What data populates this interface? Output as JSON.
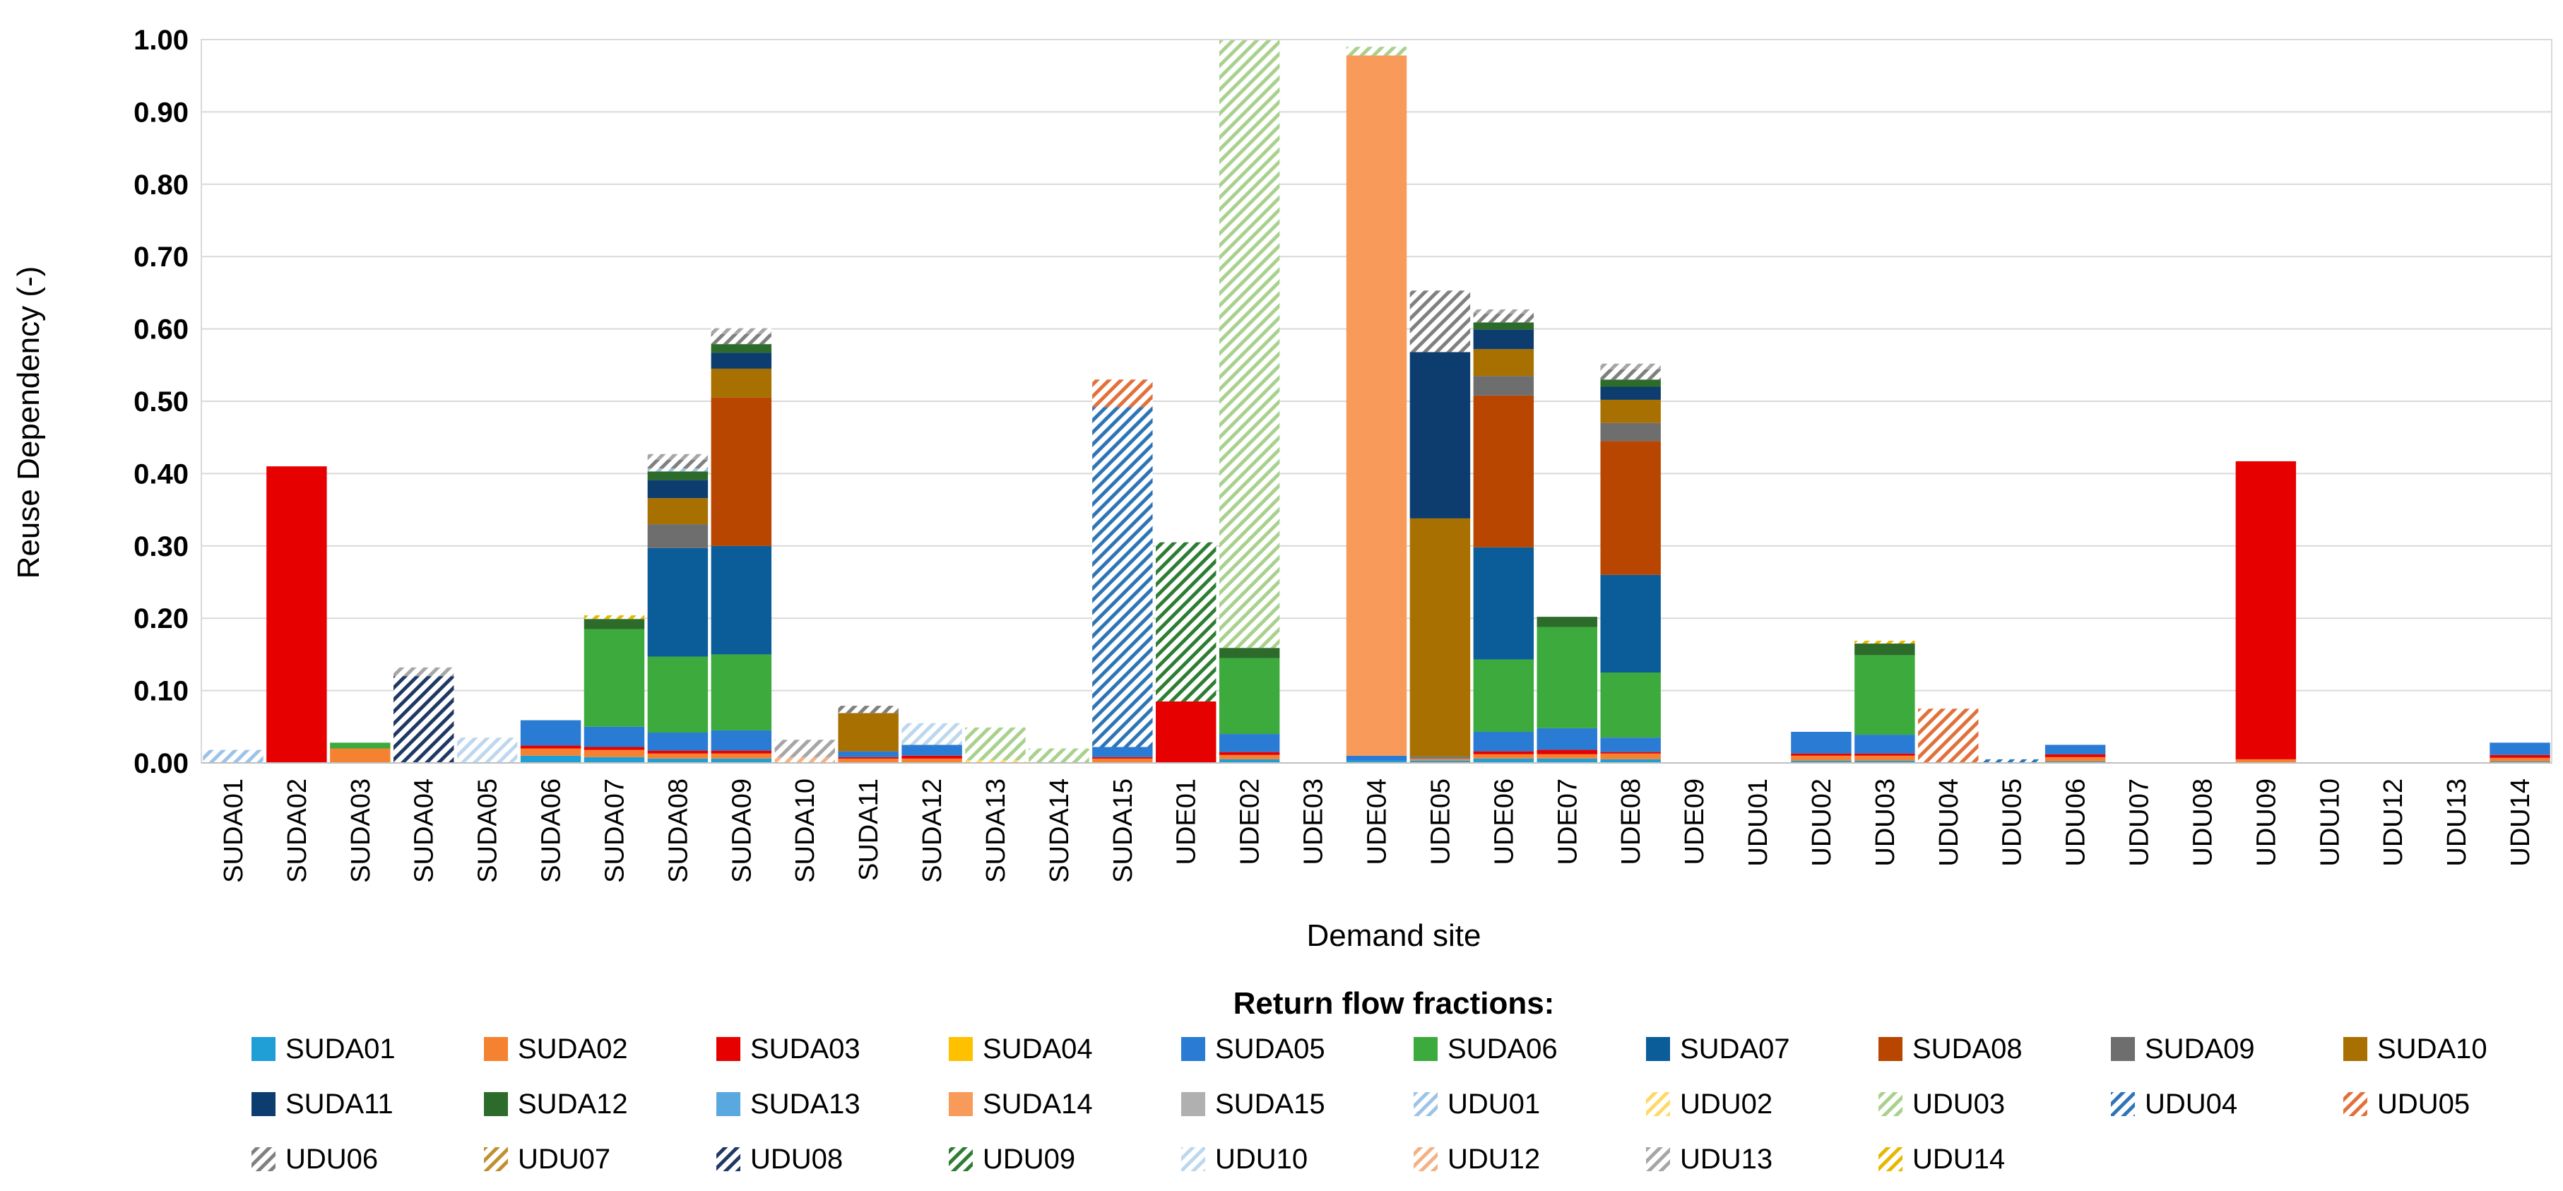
{
  "chart_data": {
    "type": "bar",
    "stacked": true,
    "title": "",
    "xlabel": "Demand site",
    "ylabel": "Reuse Dependency (-)",
    "ylim": [
      0,
      1.0
    ],
    "yticks": [
      "0.00",
      "0.10",
      "0.20",
      "0.30",
      "0.40",
      "0.50",
      "0.60",
      "0.70",
      "0.80",
      "0.90",
      "1.00"
    ],
    "grid": true,
    "legend_title": "Return flow fractions:",
    "legend_position": "bottom",
    "categories": [
      "SUDA01",
      "SUDA02",
      "SUDA03",
      "SUDA04",
      "SUDA05",
      "SUDA06",
      "SUDA07",
      "SUDA08",
      "SUDA09",
      "SUDA10",
      "SUDA11",
      "SUDA12",
      "SUDA13",
      "SUDA14",
      "SUDA15",
      "UDE01",
      "UDE02",
      "UDE03",
      "UDE04",
      "UDE05",
      "UDE06",
      "UDE07",
      "UDE08",
      "UDE09",
      "UDU01",
      "UDU02",
      "UDU03",
      "UDU04",
      "UDU05",
      "UDU06",
      "UDU07",
      "UDU08",
      "UDU09",
      "UDU10",
      "UDU12",
      "UDU13",
      "UDU14"
    ],
    "series": [
      {
        "name": "SUDA01",
        "color": "#1f9fd6",
        "pattern": false,
        "values": [
          0,
          0,
          0,
          0,
          0,
          0.01,
          0.008,
          0.006,
          0.006,
          0,
          0,
          0,
          0,
          0,
          0,
          0,
          0.005,
          0,
          0.003,
          0.003,
          0.006,
          0.006,
          0.005,
          0,
          0,
          0.003,
          0.003,
          0,
          0,
          0.002,
          0,
          0,
          0,
          0,
          0,
          0,
          0.002
        ]
      },
      {
        "name": "SUDA02",
        "color": "#f58231",
        "pattern": false,
        "values": [
          0,
          0,
          0.02,
          0,
          0,
          0.01,
          0.01,
          0.007,
          0.007,
          0,
          0.006,
          0.006,
          0,
          0,
          0.006,
          0,
          0.006,
          0,
          0,
          0.003,
          0.006,
          0.006,
          0.008,
          0,
          0,
          0.007,
          0.007,
          0,
          0,
          0.006,
          0,
          0,
          0.005,
          0,
          0,
          0,
          0.005
        ]
      },
      {
        "name": "SUDA03",
        "color": "#e60000",
        "pattern": false,
        "values": [
          0,
          0.41,
          0,
          0,
          0,
          0.004,
          0.004,
          0.004,
          0.004,
          0,
          0.002,
          0.004,
          0,
          0,
          0.002,
          0.085,
          0.004,
          0,
          0,
          0,
          0.004,
          0.006,
          0.002,
          0,
          0,
          0.003,
          0.003,
          0,
          0,
          0.004,
          0,
          0,
          0.412,
          0,
          0,
          0,
          0.004
        ]
      },
      {
        "name": "SUDA04",
        "color": "#ffc000",
        "pattern": false,
        "values": [
          0,
          0,
          0,
          0,
          0,
          0,
          0,
          0,
          0,
          0,
          0,
          0,
          0,
          0,
          0,
          0,
          0,
          0,
          0,
          0,
          0,
          0,
          0,
          0,
          0,
          0,
          0,
          0,
          0,
          0,
          0,
          0,
          0,
          0,
          0,
          0,
          0
        ]
      },
      {
        "name": "SUDA05",
        "color": "#2a7bd4",
        "pattern": false,
        "values": [
          0,
          0,
          0,
          0,
          0,
          0.035,
          0.028,
          0.025,
          0.028,
          0,
          0.008,
          0.015,
          0,
          0,
          0.014,
          0,
          0.025,
          0,
          0.007,
          0.002,
          0.027,
          0.03,
          0.02,
          0,
          0,
          0.03,
          0.026,
          0,
          0,
          0.013,
          0,
          0,
          0,
          0,
          0,
          0,
          0.017
        ]
      },
      {
        "name": "SUDA06",
        "color": "#3caa3c",
        "pattern": false,
        "values": [
          0,
          0,
          0.008,
          0,
          0,
          0,
          0.135,
          0.105,
          0.105,
          0,
          0,
          0,
          0,
          0,
          0,
          0,
          0.105,
          0,
          0,
          0,
          0.1,
          0.14,
          0.09,
          0,
          0,
          0,
          0.11,
          0,
          0,
          0,
          0,
          0,
          0,
          0,
          0,
          0,
          0
        ]
      },
      {
        "name": "SUDA07",
        "color": "#0b5d9a",
        "pattern": false,
        "values": [
          0,
          0,
          0,
          0,
          0,
          0,
          0,
          0.15,
          0.15,
          0,
          0,
          0,
          0,
          0,
          0,
          0,
          0,
          0,
          0,
          0,
          0.155,
          0,
          0.135,
          0,
          0,
          0,
          0,
          0,
          0,
          0,
          0,
          0,
          0,
          0,
          0,
          0,
          0
        ]
      },
      {
        "name": "SUDA08",
        "color": "#b84500",
        "pattern": false,
        "values": [
          0,
          0,
          0,
          0,
          0,
          0,
          0,
          0,
          0.205,
          0,
          0,
          0,
          0,
          0,
          0,
          0,
          0,
          0,
          0,
          0,
          0.21,
          0,
          0.185,
          0,
          0,
          0,
          0,
          0,
          0,
          0,
          0,
          0,
          0,
          0,
          0,
          0,
          0
        ]
      },
      {
        "name": "SUDA09",
        "color": "#6e6e6e",
        "pattern": false,
        "values": [
          0,
          0,
          0,
          0,
          0,
          0,
          0,
          0.033,
          0,
          0,
          0,
          0,
          0,
          0,
          0,
          0,
          0,
          0,
          0,
          0,
          0.027,
          0,
          0.025,
          0,
          0,
          0,
          0,
          0,
          0,
          0,
          0,
          0,
          0,
          0,
          0,
          0,
          0
        ]
      },
      {
        "name": "SUDA10",
        "color": "#a87000",
        "pattern": false,
        "values": [
          0,
          0,
          0,
          0,
          0,
          0,
          0,
          0.036,
          0.04,
          0,
          0.053,
          0,
          0,
          0,
          0,
          0,
          0,
          0,
          0,
          0.33,
          0.037,
          0,
          0.032,
          0,
          0,
          0,
          0,
          0,
          0,
          0,
          0,
          0,
          0,
          0,
          0,
          0,
          0
        ]
      },
      {
        "name": "SUDA11",
        "color": "#0d3c6e",
        "pattern": false,
        "values": [
          0,
          0,
          0,
          0,
          0,
          0,
          0,
          0.025,
          0.022,
          0,
          0,
          0,
          0,
          0,
          0,
          0,
          0,
          0,
          0,
          0.23,
          0.027,
          0,
          0.018,
          0,
          0,
          0,
          0,
          0,
          0,
          0,
          0,
          0,
          0,
          0,
          0,
          0,
          0
        ]
      },
      {
        "name": "SUDA12",
        "color": "#2c6b2a",
        "pattern": false,
        "values": [
          0,
          0,
          0,
          0,
          0,
          0,
          0.014,
          0.012,
          0.012,
          0,
          0,
          0,
          0,
          0,
          0,
          0,
          0.014,
          0,
          0,
          0,
          0.01,
          0.014,
          0.01,
          0,
          0,
          0,
          0.016,
          0,
          0,
          0,
          0,
          0,
          0,
          0,
          0,
          0,
          0
        ]
      },
      {
        "name": "SUDA13",
        "color": "#5aa8e0",
        "pattern": false,
        "values": [
          0,
          0,
          0,
          0,
          0,
          0,
          0,
          0,
          0,
          0,
          0,
          0,
          0,
          0,
          0,
          0,
          0,
          0,
          0,
          0,
          0,
          0,
          0,
          0,
          0,
          0,
          0,
          0,
          0,
          0,
          0,
          0,
          0,
          0,
          0,
          0,
          0
        ]
      },
      {
        "name": "SUDA14",
        "color": "#f89a5a",
        "pattern": false,
        "values": [
          0,
          0,
          0,
          0,
          0,
          0,
          0,
          0,
          0,
          0,
          0,
          0,
          0,
          0,
          0,
          0,
          0,
          0,
          0.968,
          0,
          0,
          0,
          0,
          0,
          0,
          0,
          0,
          0,
          0,
          0,
          0,
          0,
          0,
          0,
          0,
          0,
          0
        ]
      },
      {
        "name": "SUDA15",
        "color": "#b0b0b0",
        "pattern": false,
        "values": [
          0,
          0,
          0,
          0,
          0,
          0,
          0,
          0,
          0,
          0,
          0,
          0,
          0,
          0,
          0,
          0,
          0,
          0,
          0,
          0,
          0,
          0,
          0,
          0,
          0,
          0,
          0,
          0,
          0,
          0,
          0,
          0,
          0,
          0,
          0,
          0,
          0
        ]
      },
      {
        "name": "UDU01",
        "color": "#9dc3e6",
        "pattern": true,
        "values": [
          0.018,
          0,
          0,
          0,
          0,
          0,
          0,
          0.004,
          0,
          0,
          0,
          0,
          0,
          0,
          0,
          0,
          0,
          0,
          0,
          0,
          0,
          0,
          0,
          0,
          0,
          0,
          0,
          0,
          0,
          0,
          0,
          0,
          0,
          0,
          0,
          0,
          0
        ]
      },
      {
        "name": "UDU02",
        "color": "#ffd966",
        "pattern": true,
        "values": [
          0,
          0,
          0,
          0,
          0,
          0,
          0,
          0,
          0,
          0,
          0,
          0,
          0.004,
          0,
          0,
          0,
          0,
          0,
          0,
          0,
          0,
          0,
          0,
          0,
          0,
          0,
          0,
          0,
          0,
          0,
          0,
          0,
          0,
          0,
          0,
          0,
          0
        ]
      },
      {
        "name": "UDU03",
        "color": "#a9d18e",
        "pattern": true,
        "values": [
          0,
          0,
          0,
          0,
          0,
          0,
          0,
          0,
          0,
          0,
          0,
          0,
          0.045,
          0.02,
          0,
          0,
          0.84,
          0,
          0.012,
          0,
          0,
          0,
          0,
          0,
          0,
          0,
          0,
          0,
          0,
          0,
          0,
          0,
          0,
          0,
          0,
          0,
          0
        ]
      },
      {
        "name": "UDU04",
        "color": "#2e75b6",
        "pattern": true,
        "values": [
          0,
          0,
          0,
          0,
          0,
          0,
          0,
          0,
          0,
          0,
          0,
          0,
          0,
          0,
          0.47,
          0,
          0,
          0,
          0,
          0,
          0,
          0,
          0,
          0,
          0,
          0,
          0,
          0,
          0.005,
          0,
          0,
          0,
          0,
          0,
          0,
          0,
          0
        ]
      },
      {
        "name": "UDU05",
        "color": "#e2703a",
        "pattern": true,
        "values": [
          0,
          0,
          0,
          0,
          0,
          0,
          0,
          0,
          0,
          0,
          0,
          0,
          0,
          0,
          0.038,
          0,
          0,
          0,
          0,
          0,
          0,
          0,
          0,
          0,
          0,
          0,
          0,
          0.075,
          0,
          0,
          0,
          0,
          0,
          0,
          0,
          0,
          0
        ]
      },
      {
        "name": "UDU06",
        "color": "#808080",
        "pattern": true,
        "values": [
          0,
          0,
          0,
          0,
          0,
          0,
          0,
          0.012,
          0.014,
          0,
          0.01,
          0,
          0,
          0,
          0,
          0,
          0,
          0,
          0,
          0.085,
          0.012,
          0,
          0.014,
          0,
          0,
          0,
          0,
          0,
          0,
          0,
          0,
          0,
          0,
          0,
          0,
          0,
          0
        ]
      },
      {
        "name": "UDU07",
        "color": "#c09030",
        "pattern": true,
        "values": [
          0,
          0,
          0,
          0,
          0,
          0,
          0,
          0,
          0,
          0,
          0,
          0,
          0,
          0,
          0,
          0,
          0,
          0,
          0,
          0,
          0,
          0,
          0,
          0,
          0,
          0,
          0,
          0,
          0,
          0,
          0,
          0,
          0,
          0,
          0,
          0,
          0
        ]
      },
      {
        "name": "UDU08",
        "color": "#1f3864",
        "pattern": true,
        "values": [
          0,
          0,
          0,
          0.12,
          0,
          0,
          0,
          0,
          0,
          0,
          0,
          0,
          0,
          0,
          0,
          0,
          0,
          0,
          0,
          0,
          0,
          0,
          0,
          0,
          0,
          0,
          0,
          0,
          0,
          0,
          0,
          0,
          0,
          0,
          0,
          0,
          0
        ]
      },
      {
        "name": "UDU09",
        "color": "#2e7d32",
        "pattern": true,
        "values": [
          0,
          0,
          0,
          0,
          0,
          0,
          0,
          0,
          0,
          0,
          0,
          0,
          0,
          0,
          0,
          0.22,
          0,
          0,
          0,
          0,
          0,
          0,
          0,
          0,
          0,
          0,
          0,
          0,
          0,
          0,
          0,
          0,
          0,
          0,
          0,
          0,
          0
        ]
      },
      {
        "name": "UDU10",
        "color": "#bdd7ee",
        "pattern": true,
        "values": [
          0,
          0,
          0,
          0,
          0.035,
          0,
          0,
          0,
          0,
          0,
          0,
          0.03,
          0,
          0,
          0,
          0,
          0,
          0,
          0,
          0,
          0,
          0,
          0,
          0,
          0,
          0,
          0,
          0,
          0,
          0,
          0,
          0,
          0,
          0,
          0,
          0,
          0
        ]
      },
      {
        "name": "UDU12",
        "color": "#f4b183",
        "pattern": true,
        "values": [
          0,
          0,
          0,
          0,
          0,
          0,
          0,
          0,
          0,
          0.008,
          0,
          0,
          0,
          0,
          0,
          0,
          0,
          0,
          0,
          0,
          0,
          0,
          0,
          0,
          0,
          0,
          0,
          0,
          0,
          0,
          0,
          0,
          0,
          0,
          0,
          0,
          0
        ]
      },
      {
        "name": "UDU13",
        "color": "#a6a6a6",
        "pattern": true,
        "values": [
          0,
          0,
          0,
          0.012,
          0,
          0,
          0,
          0.008,
          0.008,
          0.024,
          0,
          0,
          0,
          0,
          0,
          0,
          0,
          0,
          0,
          0,
          0.006,
          0,
          0.008,
          0,
          0,
          0,
          0,
          0,
          0,
          0,
          0,
          0,
          0,
          0,
          0,
          0,
          0
        ]
      },
      {
        "name": "UDU14",
        "color": "#e6b800",
        "pattern": true,
        "values": [
          0,
          0,
          0,
          0,
          0,
          0,
          0.005,
          0,
          0,
          0,
          0,
          0,
          0,
          0,
          0,
          0,
          0,
          0,
          0,
          0,
          0,
          0,
          0,
          0,
          0,
          0,
          0.004,
          0,
          0,
          0,
          0,
          0,
          0,
          0,
          0,
          0,
          0
        ]
      }
    ]
  }
}
